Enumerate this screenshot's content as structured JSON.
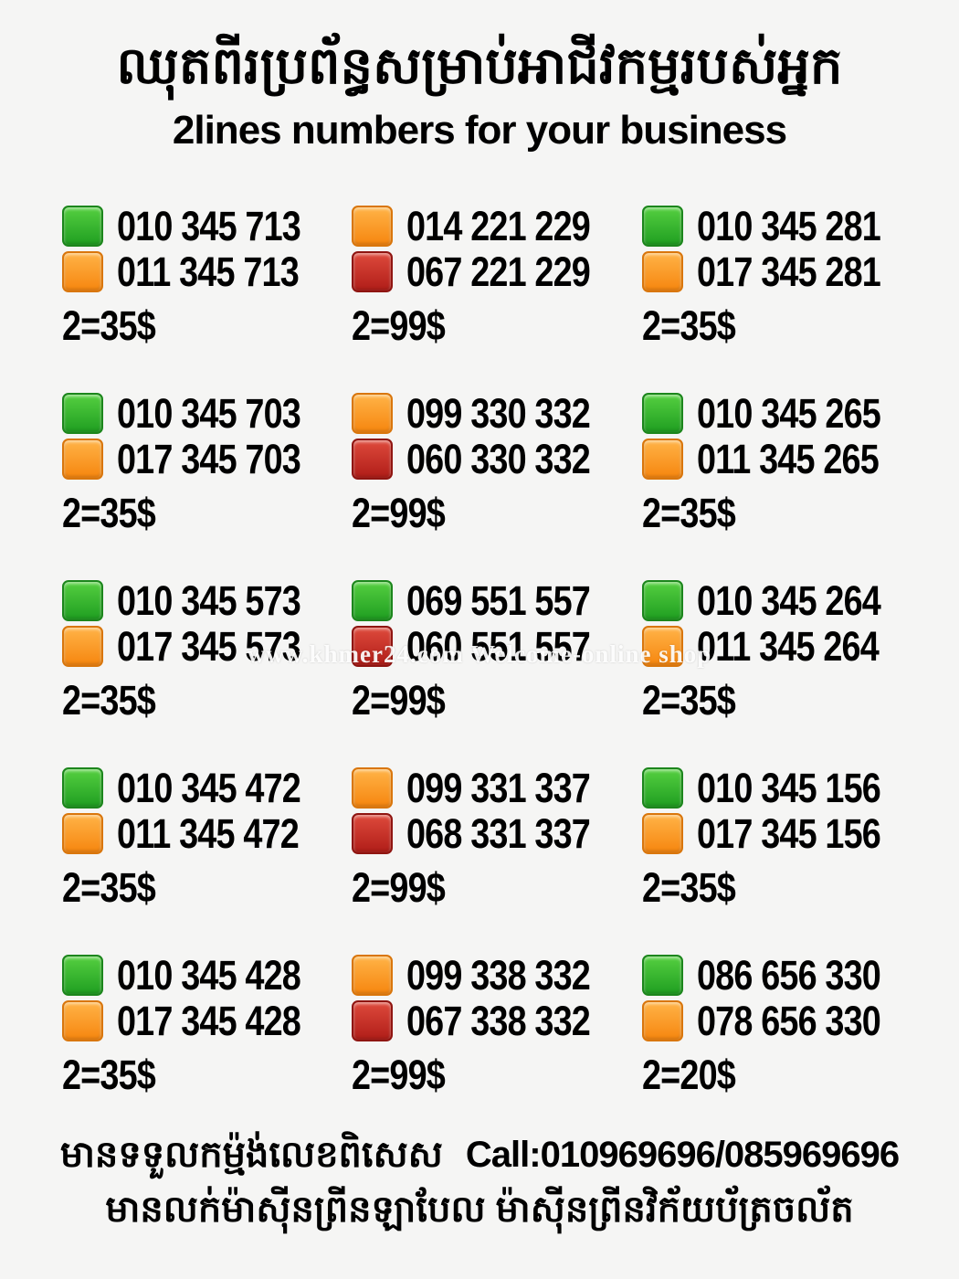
{
  "title": {
    "khmer": "ឈុតពីរប្រព័ន្ធសម្រាប់អាជីវកម្មរបស់អ្នក",
    "english": "2lines numbers for your business"
  },
  "theme": {
    "background": "#f5f5f4",
    "text_color": "#000000",
    "square_colors": {
      "green": {
        "top": "#55cf40",
        "bottom": "#1f9e21",
        "border": "#1c861c"
      },
      "orange": {
        "top": "#ffb347",
        "bottom": "#f6860f",
        "border": "#d9760c"
      },
      "red": {
        "top": "#de4a3c",
        "bottom": "#b01d18",
        "border": "#8f1511"
      }
    }
  },
  "watermark": "www.khmer24.com Welcome-online shop",
  "grid": {
    "columns": 3,
    "groups": [
      {
        "lines": [
          {
            "color": "green",
            "number": "010 345 713"
          },
          {
            "color": "orange",
            "number": "011 345 713"
          }
        ],
        "price": "2=35$"
      },
      {
        "lines": [
          {
            "color": "orange",
            "number": "014 221 229"
          },
          {
            "color": "red",
            "number": "067 221 229"
          }
        ],
        "price": "2=99$"
      },
      {
        "lines": [
          {
            "color": "green",
            "number": "010 345 281"
          },
          {
            "color": "orange",
            "number": "017 345 281"
          }
        ],
        "price": "2=35$"
      },
      {
        "lines": [
          {
            "color": "green",
            "number": "010 345 703"
          },
          {
            "color": "orange",
            "number": "017 345 703"
          }
        ],
        "price": "2=35$"
      },
      {
        "lines": [
          {
            "color": "orange",
            "number": "099 330 332"
          },
          {
            "color": "red",
            "number": "060 330 332"
          }
        ],
        "price": "2=99$"
      },
      {
        "lines": [
          {
            "color": "green",
            "number": "010 345 265"
          },
          {
            "color": "orange",
            "number": "011 345 265"
          }
        ],
        "price": "2=35$"
      },
      {
        "lines": [
          {
            "color": "green",
            "number": "010 345 573"
          },
          {
            "color": "orange",
            "number": "017 345 573"
          }
        ],
        "price": "2=35$"
      },
      {
        "lines": [
          {
            "color": "green",
            "number": "069 551 557"
          },
          {
            "color": "red",
            "number": "060 551 557"
          }
        ],
        "price": "2=99$"
      },
      {
        "lines": [
          {
            "color": "green",
            "number": "010 345 264"
          },
          {
            "color": "orange",
            "number": "011 345 264"
          }
        ],
        "price": "2=35$"
      },
      {
        "lines": [
          {
            "color": "green",
            "number": "010 345 472"
          },
          {
            "color": "orange",
            "number": "011 345 472"
          }
        ],
        "price": "2=35$"
      },
      {
        "lines": [
          {
            "color": "orange",
            "number": "099 331 337"
          },
          {
            "color": "red",
            "number": "068 331 337"
          }
        ],
        "price": "2=99$"
      },
      {
        "lines": [
          {
            "color": "green",
            "number": "010 345 156"
          },
          {
            "color": "orange",
            "number": "017 345 156"
          }
        ],
        "price": "2=35$"
      },
      {
        "lines": [
          {
            "color": "green",
            "number": "010 345 428"
          },
          {
            "color": "orange",
            "number": "017 345 428"
          }
        ],
        "price": "2=35$"
      },
      {
        "lines": [
          {
            "color": "orange",
            "number": "099 338 332"
          },
          {
            "color": "red",
            "number": "067 338 332"
          }
        ],
        "price": "2=99$"
      },
      {
        "lines": [
          {
            "color": "green",
            "number": "086 656 330"
          },
          {
            "color": "orange",
            "number": "078 656 330"
          }
        ],
        "price": "2=20$"
      }
    ]
  },
  "footer": {
    "line1_khmer": "មានទទួលកម្ម៉ង់លេខពិសេស",
    "line1_call": "Call:010969696/085969696",
    "line2_khmer": "មានលក់ម៉ាស៊ីនព្រីនឡាបែល ម៉ាស៊ីនព្រីនវិក័យប័ត្រចល័ត"
  }
}
